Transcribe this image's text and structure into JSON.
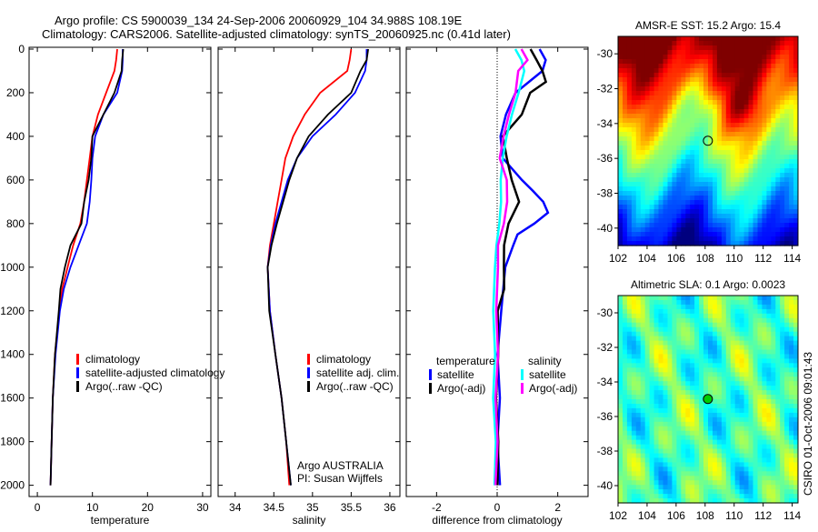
{
  "title_line1": "Argo profile: CS 5900039_134 24-Sep-2006 20060929_104 34.988S 108.19E",
  "title_line2": "Climatology: CARS2006. Satellite-adjusted climatology: synTS_20060925.nc (0.41d later)",
  "credit": "CSIRO 01-Oct-2006 09:01:43",
  "chart_data": [
    {
      "type": "line",
      "id": "temperature",
      "xlabel": "temperature",
      "xlim": [
        -1.5,
        31.5
      ],
      "xticks": [
        0,
        10,
        20,
        30
      ],
      "ylim": [
        0,
        2060
      ],
      "yticks": [
        0,
        200,
        400,
        600,
        800,
        1000,
        1200,
        1400,
        1600,
        1800,
        2000
      ],
      "reversed_y": true,
      "legend": [
        "climatology",
        "satellite-adjusted climatology",
        "Argo(..raw -QC)"
      ],
      "series": [
        {
          "name": "climatology",
          "color": "#ff0000",
          "depth": [
            0,
            50,
            100,
            200,
            300,
            400,
            500,
            600,
            700,
            800,
            900,
            1000,
            1100,
            1200,
            1400,
            1600,
            1800,
            2000
          ],
          "values": [
            14.5,
            14.3,
            14.0,
            12.5,
            11.0,
            10.0,
            9.5,
            9.0,
            8.5,
            7.8,
            6.5,
            5.5,
            4.5,
            4.0,
            3.2,
            2.8,
            2.6,
            2.4
          ]
        },
        {
          "name": "satellite-adjusted climatology",
          "color": "#0000ff",
          "depth": [
            0,
            50,
            100,
            200,
            300,
            400,
            500,
            600,
            700,
            800,
            900,
            1000,
            1100,
            1200,
            1400,
            1600,
            1800,
            2000
          ],
          "values": [
            15.5,
            15.5,
            15.4,
            14.5,
            12.0,
            10.5,
            10.0,
            9.8,
            9.5,
            9.0,
            7.5,
            6.0,
            4.8,
            4.1,
            3.3,
            2.8,
            2.6,
            2.4
          ]
        },
        {
          "name": "Argo(..raw -QC)",
          "color": "#000000",
          "depth": [
            0,
            50,
            100,
            200,
            300,
            400,
            500,
            600,
            700,
            800,
            900,
            1000,
            1100,
            1200,
            1400,
            1600,
            1800,
            2000
          ],
          "values": [
            15.6,
            15.4,
            15.3,
            14.0,
            12.0,
            10.0,
            9.8,
            9.3,
            8.5,
            8.0,
            6.0,
            5.0,
            4.2,
            3.9,
            3.2,
            2.8,
            2.6,
            2.4
          ]
        }
      ]
    },
    {
      "type": "line",
      "id": "salinity",
      "xlabel": "salinity",
      "xlim": [
        33.78,
        36.13
      ],
      "xticks": [
        34,
        34.5,
        35,
        35.5,
        36
      ],
      "ylim": [
        0,
        2060
      ],
      "reversed_y": true,
      "legend": [
        "climatology",
        "satellite adj. clim.",
        "Argo(..raw -QC)"
      ],
      "annotation": [
        "Argo AUSTRALIA",
        "PI: Susan Wijffels"
      ],
      "series": [
        {
          "name": "climatology",
          "color": "#ff0000",
          "depth": [
            0,
            50,
            100,
            200,
            300,
            400,
            500,
            600,
            700,
            800,
            900,
            1000,
            1200,
            1400,
            1600,
            1800,
            2000
          ],
          "values": [
            35.5,
            35.48,
            35.45,
            35.1,
            34.9,
            34.75,
            34.65,
            34.6,
            34.55,
            34.5,
            34.45,
            34.42,
            34.45,
            34.52,
            34.6,
            34.66,
            34.7
          ]
        },
        {
          "name": "satellite adj. clim.",
          "color": "#0000ff",
          "depth": [
            0,
            50,
            100,
            200,
            300,
            400,
            500,
            600,
            700,
            800,
            900,
            1000,
            1200,
            1400,
            1600,
            1800,
            2000
          ],
          "values": [
            35.7,
            35.7,
            35.68,
            35.55,
            35.3,
            35.0,
            34.8,
            34.68,
            34.6,
            34.52,
            34.46,
            34.42,
            34.45,
            34.52,
            34.6,
            34.66,
            34.72
          ]
        },
        {
          "name": "Argo(..raw -QC)",
          "color": "#000000",
          "depth": [
            0,
            50,
            100,
            200,
            300,
            400,
            500,
            600,
            700,
            800,
            900,
            1000,
            1200,
            1400,
            1600,
            1800,
            2000
          ],
          "values": [
            35.72,
            35.7,
            35.62,
            35.5,
            35.2,
            34.95,
            34.8,
            34.7,
            34.62,
            34.54,
            34.47,
            34.42,
            34.44,
            34.52,
            34.6,
            34.66,
            34.72
          ]
        }
      ]
    },
    {
      "type": "line",
      "id": "difference",
      "xlabel": "difference from climatology",
      "xlim": [
        -3,
        3
      ],
      "xticks": [
        -2,
        0,
        2
      ],
      "zero_line": "dotted",
      "ylim": [
        0,
        2060
      ],
      "reversed_y": true,
      "legend_headers": [
        "temperature",
        "salinity"
      ],
      "legend": [
        "satellite",
        "Argo(-adj)",
        "satellite",
        "Argo(-adj)"
      ],
      "series": [
        {
          "name": "temperature satellite",
          "color": "#0000ff",
          "depth": [
            0,
            50,
            100,
            200,
            300,
            400,
            500,
            600,
            650,
            700,
            750,
            800,
            850,
            900,
            1000,
            1200,
            1400,
            1600,
            1800,
            2000
          ],
          "values": [
            1.4,
            1.6,
            1.5,
            0.6,
            0.3,
            0.1,
            0.2,
            0.8,
            1.2,
            1.5,
            1.7,
            1.2,
            0.7,
            0.5,
            0.3,
            0.1,
            0.05,
            0.05,
            0.05,
            0.05
          ]
        },
        {
          "name": "temperature Argo(-adj)",
          "color": "#000000",
          "depth": [
            0,
            50,
            100,
            150,
            200,
            300,
            400,
            500,
            600,
            700,
            800,
            900,
            1000,
            1100,
            1200,
            1400,
            1600,
            1800,
            2000
          ],
          "values": [
            1.1,
            1.3,
            1.5,
            1.6,
            1.1,
            0.8,
            0.2,
            0.3,
            0.5,
            0.7,
            0.4,
            0.2,
            0.25,
            0.2,
            0.05,
            0.0,
            0.0,
            0.0,
            0.05
          ]
        },
        {
          "name": "salinity satellite",
          "color": "#00ffff",
          "depth": [
            0,
            50,
            100,
            200,
            300,
            400,
            500,
            600,
            700,
            800,
            900,
            1000,
            1200,
            1400,
            1600,
            1800,
            2000
          ],
          "values": [
            0.6,
            0.8,
            0.9,
            0.7,
            0.5,
            0.3,
            0.2,
            0.1,
            0.15,
            0.05,
            0.0,
            -0.1,
            -0.1,
            -0.1,
            -0.1,
            -0.08,
            -0.05
          ]
        },
        {
          "name": "salinity Argo(-adj)",
          "color": "#ff00ff",
          "depth": [
            0,
            50,
            100,
            200,
            300,
            400,
            500,
            600,
            700,
            800,
            900,
            1000,
            1200,
            1400,
            1600,
            1800,
            2000
          ],
          "values": [
            0.8,
            1.0,
            0.7,
            0.6,
            0.4,
            0.2,
            0.1,
            0.3,
            0.35,
            0.2,
            0.05,
            0.0,
            0.0,
            0.0,
            -0.02,
            -0.02,
            -0.02
          ]
        }
      ]
    },
    {
      "type": "heatmap",
      "id": "sst-map",
      "title": "AMSR-E SST: 15.2 Argo: 15.4",
      "xlim": [
        102,
        114.4
      ],
      "xticks": [
        102,
        104,
        106,
        108,
        110,
        112,
        114
      ],
      "ylim": [
        -41,
        -29
      ],
      "yticks": [
        -30,
        -32,
        -34,
        -36,
        -38,
        -40
      ],
      "marker": {
        "lon": 108.19,
        "lat": -34.988,
        "color": "#ffff00"
      },
      "colormap": "jet"
    },
    {
      "type": "heatmap",
      "id": "sla-map",
      "title": "Altimetric SLA: 0.1 Argo: 0.0023",
      "xlim": [
        102,
        114.4
      ],
      "xticks": [
        102,
        104,
        106,
        108,
        110,
        112,
        114
      ],
      "ylim": [
        -41,
        -29
      ],
      "yticks": [
        -30,
        -32,
        -34,
        -36,
        -38,
        -40
      ],
      "marker": {
        "lon": 108.19,
        "lat": -34.988,
        "color": "#00cc00"
      },
      "colormap": "jet"
    }
  ]
}
